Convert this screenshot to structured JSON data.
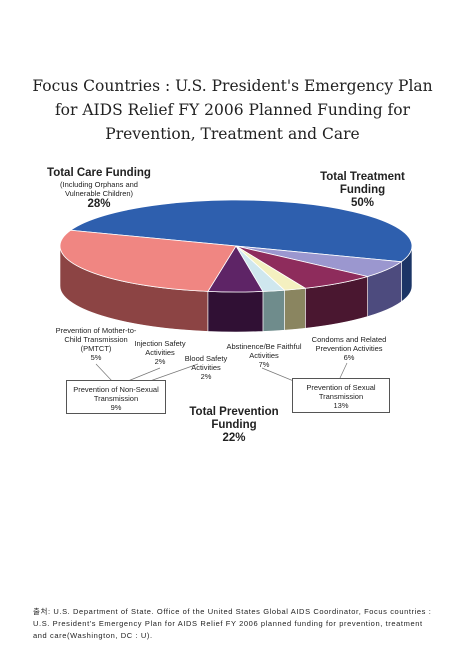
{
  "title_lines": [
    "Focus Countries : U.S. President's Emergency Plan",
    "for AIDS Relief FY 2006 Planned Funding for",
    "Prevention, Treatment and Care"
  ],
  "chart_data": {
    "type": "pie",
    "title": "Focus Countries : U.S. President's Emergency Plan for AIDS Relief FY 2006 Planned Funding for Prevention, Treatment and Care",
    "slices": [
      {
        "label": "Total Treatment Funding",
        "pct_text": "50%",
        "value": 50,
        "color": "#2e5fae",
        "side": "#1b3566"
      },
      {
        "label": "Condoms and Related Prevention Activities",
        "pct_text": "6%",
        "value": 6,
        "color": "#9b97cf",
        "side": "#4d4b7e"
      },
      {
        "label": "Abstinence/Be Faithful Activities",
        "pct_text": "7%",
        "value": 7,
        "color": "#8e2c5c",
        "side": "#4a1730"
      },
      {
        "label": "Blood Safety Activities",
        "pct_text": "2%",
        "value": 2,
        "color": "#f4f0c0",
        "side": "#8a8560"
      },
      {
        "label": "Injection Safety Activities",
        "pct_text": "2%",
        "value": 2,
        "color": "#cfe7ee",
        "side": "#6f8c8c"
      },
      {
        "label": "Prevention of Mother-to-Child Transmission (PMTCT)",
        "pct_text": "5%",
        "value": 5,
        "color": "#5e2466",
        "side": "#301034"
      },
      {
        "label": "Total Care Funding",
        "pct_text": "28%",
        "value": 28,
        "color": "#f08682",
        "side": "#8c4444"
      }
    ],
    "group_labels": {
      "treatment": {
        "name_lines": [
          "Total Treatment",
          "Funding"
        ],
        "pct": "50%"
      },
      "care": {
        "name": "Total Care Funding",
        "sub_lines": [
          "(Including Orphans and",
          "Vulnerable Children)"
        ],
        "pct": "28%"
      },
      "prevention": {
        "name_lines": [
          "Total Prevention",
          "Funding"
        ],
        "pct": "22%"
      }
    },
    "box_labels": [
      {
        "lines": [
          "Prevention of Non-Sexual",
          "Transmission"
        ],
        "pct": "9%"
      },
      {
        "lines": [
          "Prevention of Sexual",
          "Transmission"
        ],
        "pct": "13%"
      }
    ],
    "slice_text": {
      "pmtct": [
        "Prevention of Mother-to-",
        "Child Transmission",
        "(PMTCT)",
        "5%"
      ],
      "injection": [
        "Injection Safety",
        "Activities",
        "2%"
      ],
      "blood": [
        "Blood Safety",
        "Activities",
        "2%"
      ],
      "abstinence": [
        "Abstinence/Be Faithful",
        "Activities",
        "7%"
      ],
      "condoms": [
        "Condoms and Related",
        "Prevention Activities",
        "6%"
      ]
    }
  },
  "source_text": "출처: U.S. Department of State. Office of the United States Global AIDS Coordinator, Focus countries : U.S. President's Emergency Plan for AIDS Relief FY 2006 planned funding for prevention, treatment and care(Washington, DC : U)."
}
